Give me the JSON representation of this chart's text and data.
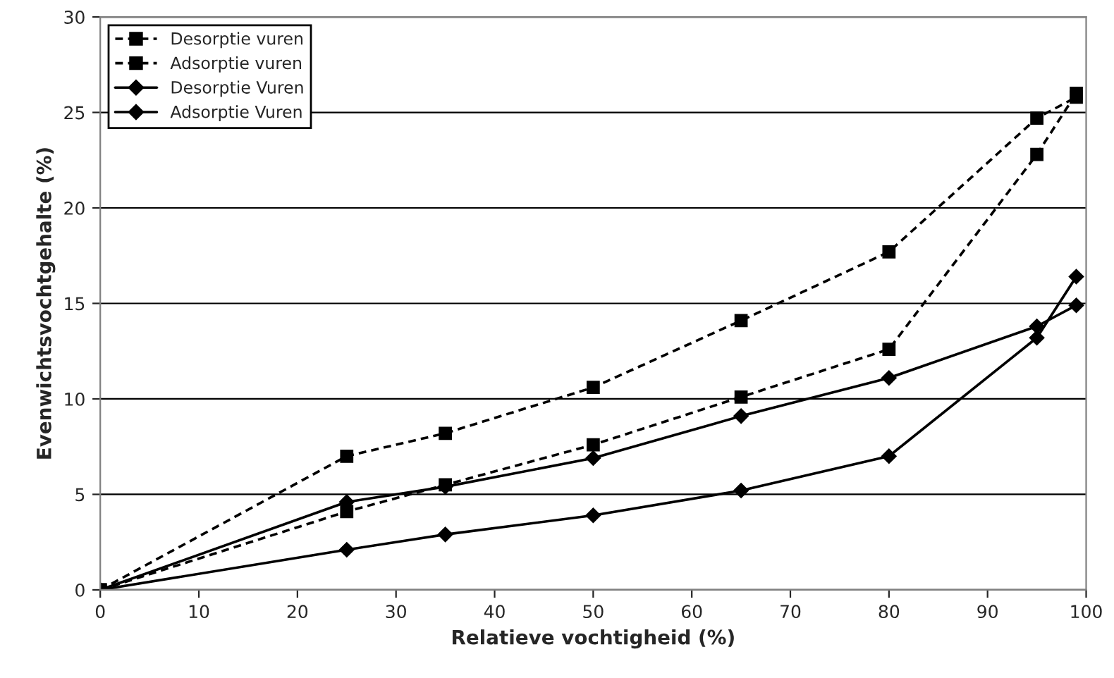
{
  "chart_data": {
    "type": "line",
    "xlabel": "Relatieve vochtigheid (%)",
    "ylabel": "Evenwichtsvochtgehalte (%)",
    "x": [
      0,
      25,
      35,
      50,
      65,
      80,
      95,
      99
    ],
    "series": [
      {
        "name": "Desorptie vuren",
        "color": "#000000",
        "marker": "square",
        "line_style": "dashed",
        "values": [
          0,
          7.0,
          8.2,
          10.6,
          14.1,
          17.7,
          24.7,
          25.8
        ]
      },
      {
        "name": "Adsorptie vuren",
        "color": "#000000",
        "marker": "square",
        "line_style": "dashed",
        "values": [
          0,
          4.1,
          5.5,
          7.6,
          10.1,
          12.6,
          22.8,
          26.0
        ]
      },
      {
        "name": "Desorptie Vuren",
        "color": "#000000",
        "marker": "diamond",
        "line_style": "solid",
        "values": [
          0,
          4.6,
          5.4,
          6.9,
          9.1,
          11.1,
          13.8,
          14.9
        ]
      },
      {
        "name": "Adsorptie Vuren",
        "color": "#000000",
        "marker": "diamond",
        "line_style": "solid",
        "values": [
          0,
          2.1,
          2.9,
          3.9,
          5.2,
          7.0,
          13.2,
          16.4
        ]
      }
    ],
    "xlim": [
      0,
      100
    ],
    "xticks": [
      0,
      10,
      20,
      30,
      40,
      50,
      60,
      70,
      80,
      90,
      100
    ],
    "ylim": [
      0,
      30
    ],
    "yticks": [
      0,
      5,
      10,
      15,
      20,
      25,
      30
    ],
    "grid": "y",
    "legend": "top left"
  }
}
